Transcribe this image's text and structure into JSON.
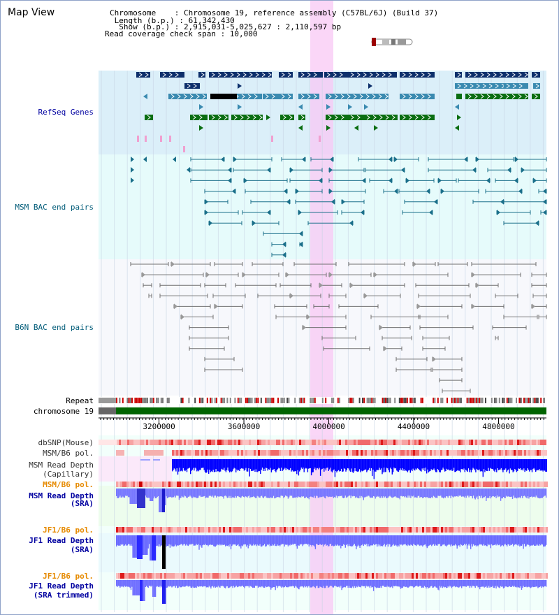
{
  "title": "Map View",
  "info": {
    "chromosome": "Chromosome    : Chromosome 19, reference assembly (C57BL/6J) (Build 37)",
    "length": " Length (b.p.) : 61,342,430",
    "show": "  Show (b.p.) : 2,915,031-5,025,627 : 2,110,597 bp",
    "span": "Read coverage check span : 10,000"
  },
  "tracks": {
    "refseq": "RefSeq Genes",
    "msm_bac": "MSM BAC end pairs",
    "b6n_bac": "B6N BAC end pairs",
    "repeat": "Repeat",
    "chrom": "chromosome 19",
    "dbsnp": "dbSNP(Mouse)",
    "msm_b6_pol": "MSM/B6 pol.",
    "msm_cap_1": "MSM Read Depth",
    "msm_cap_2": "(Capillary)",
    "msm_b6_pol2": "MSM/B6 pol.",
    "msm_sra_1": "MSM Read Depth",
    "msm_sra_2": "(SRA)",
    "jf1_b6_pol": "JF1/B6 pol.",
    "jf1_sra_1": "JF1 Read Depth",
    "jf1_sra_2": "(SRA)",
    "jf1_b6_pol2": "JF1/B6 pol.",
    "jf1_trim_1": "JF1 Read Depth",
    "jf1_trim_2": "(SRA trimmed)"
  },
  "axis": {
    "range_bp": [
      2915031,
      5025627
    ],
    "ticks": [
      "3200000",
      "3600000",
      "4000000",
      "4400000",
      "4800000"
    ]
  },
  "highlight_bp": [
    3900000,
    3970000
  ],
  "colors": {
    "refseq_dark": "#0d2f6b",
    "refseq_mid": "#3a8ab0",
    "refseq_green": "#0a6e12",
    "msm_bac": "#1a6f8a",
    "b6n_bac": "#707070",
    "highlight": "#f8c8f4",
    "read_depth_blue": "#0000ff",
    "read_depth_sra": "#6b6bff",
    "label_blue": "#0000a0",
    "label_orange": "#e68a00",
    "chrom_green": "#006400"
  }
}
